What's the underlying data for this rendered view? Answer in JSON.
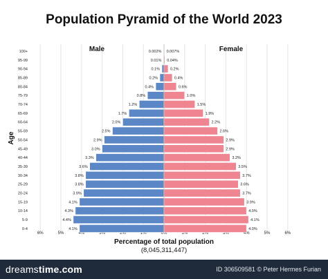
{
  "chart_data": {
    "type": "bar",
    "orientation": "horizontal-pyramid",
    "title": "Population Pyramid of the World 2023",
    "ylabel": "Age",
    "xlabel": "Percentage of total population",
    "xlabel_sub": "(8,045,311,447)",
    "xlim": [
      -6,
      6
    ],
    "xticks": [
      "6%",
      "5%",
      "4%",
      "3%",
      "2%",
      "1%",
      "0%",
      "1%",
      "2%",
      "3%",
      "4%",
      "5%",
      "6%"
    ],
    "grid": true,
    "categories": [
      "100+",
      "95-99",
      "90-94",
      "85-89",
      "80-84",
      "75-79",
      "70-74",
      "65-69",
      "60-64",
      "55-59",
      "50-54",
      "45-49",
      "40-44",
      "35-39",
      "30-34",
      "25-29",
      "20-24",
      "15-19",
      "10-14",
      "5-9",
      "0-4"
    ],
    "series": [
      {
        "name": "Male",
        "color": "#5b87c6",
        "values": [
          0.002,
          0.01,
          0.1,
          0.2,
          0.4,
          0.8,
          1.2,
          1.7,
          2.0,
          2.5,
          2.9,
          3.0,
          3.3,
          3.6,
          3.8,
          3.8,
          3.9,
          4.1,
          4.3,
          4.4,
          4.1
        ],
        "labels": [
          "0.002%",
          "0.01%",
          "0.1%",
          "0.2%",
          "0.4%",
          "0.8%",
          "1.2%",
          "1.7%",
          "2.0%",
          "2.5%",
          "2.9%",
          "3.0%",
          "3.3%",
          "3.6%",
          "3.8%",
          "3.8%",
          "3.9%",
          "4.1%",
          "4.3%",
          "4.4%",
          "4.1%"
        ]
      },
      {
        "name": "Female",
        "color": "#f08592",
        "values": [
          0.007,
          0.04,
          0.2,
          0.4,
          0.6,
          1.0,
          1.5,
          1.9,
          2.2,
          2.6,
          2.9,
          2.9,
          3.2,
          3.5,
          3.7,
          3.6,
          3.7,
          3.9,
          4.0,
          4.1,
          4.0
        ],
        "labels": [
          "0.007%",
          "0.04%",
          "0.2%",
          "0.4%",
          "0.6%",
          "1.0%",
          "1.5%",
          "1.9%",
          "2.2%",
          "2.6%",
          "2.9%",
          "2.9%",
          "3.2%",
          "3.5%",
          "3.7%",
          "3.6%",
          "3.7%",
          "3.9%",
          "4.0%",
          "4.1%",
          "4.0%"
        ]
      }
    ]
  },
  "footer": {
    "logo_prefix": "dreams",
    "logo_suffix": "time.com",
    "credit": "ID 306509581 © Peter Hermes Furian"
  },
  "colors": {
    "footer_bg": "#1f2b3a",
    "grid": "#e3e3e3"
  }
}
